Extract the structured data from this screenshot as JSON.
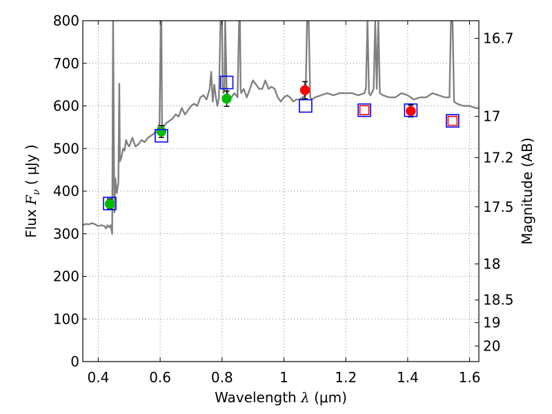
{
  "chart_data": {
    "type": "line",
    "xlabel_prefix": "Wavelength",
    "xlabel_math": "λ",
    "xlabel_unit": "(μm)",
    "ylabel_prefix": "Flux",
    "ylabel_math": "F",
    "ylabel_sub": "ν",
    "ylabel_unit": "μJy",
    "ylabel_right": "Magnitude (AB)",
    "xlim": [
      0.35,
      1.63
    ],
    "ylim": [
      0,
      800
    ],
    "grid": true,
    "x_ticks": [
      0.4,
      0.6,
      0.8,
      1.0,
      1.2,
      1.4,
      1.6
    ],
    "x_tick_labels": [
      "0.4",
      "0.6",
      "0.8",
      "1",
      "1.2",
      "1.4",
      "1.6"
    ],
    "y_ticks": [
      0,
      100,
      200,
      300,
      400,
      500,
      600,
      700,
      800
    ],
    "y_tick_labels": [
      "0",
      "100",
      "200",
      "300",
      "400",
      "500",
      "600",
      "700",
      "800"
    ],
    "mag_ticks": [
      16.7,
      17,
      17.2,
      17.5,
      18,
      18.5,
      19,
      20
    ],
    "mag_tick_labels": [
      "16.7",
      "17",
      "17.2",
      "17.5",
      "18",
      "18.5",
      "19",
      "20"
    ],
    "colors": {
      "spectrum": "#808080",
      "green": "#00bb00",
      "red": "#ff0000",
      "blue": "#0000ff",
      "grid": "#888888"
    },
    "series": [
      {
        "kind": "spectrum",
        "x": [
          0.35,
          0.36,
          0.37,
          0.38,
          0.39,
          0.4,
          0.41,
          0.42,
          0.425,
          0.43,
          0.435,
          0.44,
          0.445,
          0.448,
          0.45,
          0.452,
          0.455,
          0.46,
          0.465,
          0.468,
          0.47,
          0.475,
          0.48,
          0.485,
          0.49,
          0.495,
          0.5,
          0.51,
          0.52,
          0.53,
          0.54,
          0.55,
          0.56,
          0.57,
          0.58,
          0.59,
          0.598,
          0.602,
          0.604,
          0.606,
          0.608,
          0.61,
          0.62,
          0.63,
          0.64,
          0.65,
          0.66,
          0.67,
          0.68,
          0.69,
          0.7,
          0.71,
          0.72,
          0.73,
          0.74,
          0.75,
          0.76,
          0.765,
          0.77,
          0.775,
          0.78,
          0.785,
          0.79,
          0.795,
          0.8,
          0.802,
          0.805,
          0.808,
          0.81,
          0.815,
          0.82,
          0.83,
          0.84,
          0.85,
          0.855,
          0.858,
          0.86,
          0.862,
          0.87,
          0.88,
          0.89,
          0.9,
          0.91,
          0.92,
          0.93,
          0.94,
          0.95,
          0.96,
          0.97,
          0.98,
          0.99,
          1.0,
          1.01,
          1.02,
          1.03,
          1.04,
          1.05,
          1.06,
          1.07,
          1.075,
          1.08,
          1.085,
          1.09,
          1.1,
          1.12,
          1.14,
          1.16,
          1.18,
          1.2,
          1.22,
          1.24,
          1.26,
          1.265,
          1.27,
          1.275,
          1.28,
          1.29,
          1.295,
          1.3,
          1.305,
          1.31,
          1.32,
          1.34,
          1.36,
          1.38,
          1.4,
          1.42,
          1.44,
          1.46,
          1.48,
          1.5,
          1.52,
          1.53,
          1.535,
          1.54,
          1.545,
          1.55,
          1.56,
          1.58,
          1.6,
          1.62,
          1.63
        ],
        "y": [
          320,
          323,
          322,
          325,
          322,
          318,
          320,
          318,
          312,
          320,
          315,
          320,
          300,
          810,
          580,
          350,
          430,
          395,
          420,
          652,
          470,
          480,
          500,
          495,
          520,
          510,
          505,
          525,
          505,
          510,
          520,
          515,
          525,
          530,
          535,
          540,
          560,
          800,
          800,
          560,
          545,
          550,
          560,
          565,
          570,
          580,
          575,
          595,
          580,
          590,
          600,
          605,
          600,
          620,
          625,
          615,
          640,
          680,
          610,
          650,
          620,
          600,
          620,
          800,
          800,
          650,
          630,
          640,
          800,
          640,
          625,
          620,
          630,
          620,
          800,
          800,
          640,
          630,
          640,
          620,
          640,
          660,
          650,
          640,
          640,
          660,
          640,
          645,
          640,
          620,
          610,
          620,
          625,
          620,
          610,
          615,
          615,
          620,
          625,
          800,
          800,
          620,
          615,
          620,
          625,
          630,
          625,
          630,
          630,
          630,
          625,
          630,
          640,
          800,
          630,
          625,
          640,
          800,
          640,
          800,
          630,
          625,
          620,
          620,
          630,
          625,
          615,
          620,
          620,
          630,
          625,
          620,
          620,
          620,
          800,
          800,
          610,
          605,
          600,
          600,
          595,
          595
        ]
      },
      {
        "kind": "points",
        "name": "green",
        "x": [
          0.437,
          0.604,
          0.815
        ],
        "y": [
          370,
          540,
          617
        ],
        "err": [
          12,
          14,
          18
        ]
      },
      {
        "kind": "points",
        "name": "red",
        "x": [
          1.068,
          1.41
        ],
        "y": [
          637,
          588
        ],
        "err": [
          20,
          14
        ]
      },
      {
        "kind": "open_squares",
        "name": "blue",
        "x": [
          0.437,
          0.604,
          0.815,
          1.07,
          1.26,
          1.41,
          1.545
        ],
        "y": [
          371,
          530,
          655,
          600,
          590,
          590,
          565
        ]
      },
      {
        "kind": "open_squares",
        "name": "red_inner",
        "x": [
          1.26,
          1.545
        ],
        "y": [
          590,
          565
        ]
      }
    ]
  }
}
